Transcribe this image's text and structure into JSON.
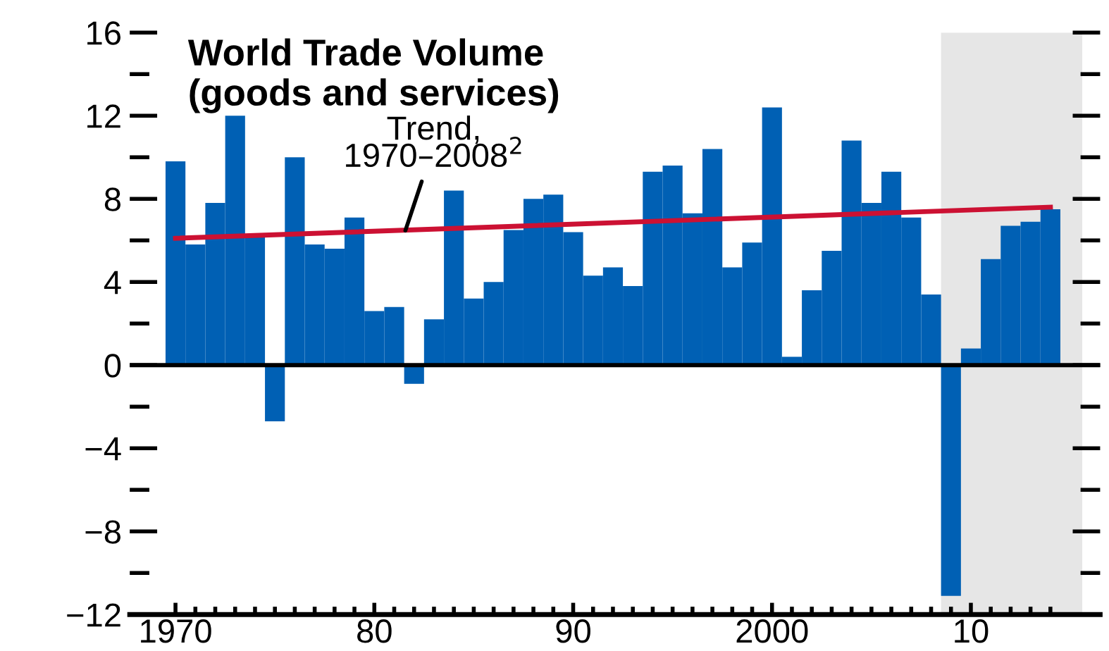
{
  "chart_data": {
    "type": "bar",
    "title": "World Trade Volume\n(goods and services)",
    "x": [
      1970,
      1971,
      1972,
      1973,
      1974,
      1975,
      1976,
      1977,
      1978,
      1979,
      1980,
      1981,
      1982,
      1983,
      1984,
      1985,
      1986,
      1987,
      1988,
      1989,
      1990,
      1991,
      1992,
      1993,
      1994,
      1995,
      1996,
      1997,
      1998,
      1999,
      2000,
      2001,
      2002,
      2003,
      2004,
      2005,
      2006,
      2007,
      2008,
      2009,
      2010,
      2011,
      2012,
      2013,
      2014
    ],
    "series": [
      {
        "color": "#0060b4",
        "values": [
          9.8,
          5.8,
          7.8,
          12.0,
          6.2,
          -2.7,
          10.0,
          5.8,
          5.6,
          7.1,
          2.6,
          2.8,
          -0.9,
          2.2,
          8.4,
          3.2,
          4.0,
          6.5,
          8.0,
          8.2,
          6.4,
          4.3,
          4.7,
          3.8,
          9.3,
          9.6,
          7.3,
          10.4,
          4.7,
          5.9,
          12.4,
          0.4,
          3.6,
          5.5,
          10.8,
          7.8,
          9.3,
          7.1,
          3.4,
          -11.1,
          0.8,
          5.1,
          6.7,
          6.9,
          7.5
        ]
      },
      {
        "type": "line",
        "color": "#cc1133",
        "x": [
          1970,
          2014
        ],
        "values": [
          6.1,
          7.6
        ]
      }
    ],
    "annotations": [
      {
        "text": "Trend,\n1970–2008$^{2}$",
        "x": 1981.5,
        "y": 6.3
      }
    ],
    "ref_lines": [
      {
        "axis": "y",
        "value": 0,
        "color": "#000000"
      }
    ],
    "bands": [
      {
        "axis": "x",
        "from": 2008.5,
        "to": 2015.6,
        "color": "#e6e6e6"
      }
    ],
    "xlim": [
      1967.7,
      2016.5
    ],
    "xticks": [
      {
        "value": 1970,
        "label": "1970"
      },
      {
        "value": 1971,
        "label": null
      },
      {
        "value": 1972,
        "label": null
      },
      {
        "value": 1973,
        "label": null
      },
      {
        "value": 1974,
        "label": null
      },
      {
        "value": 1975,
        "label": null
      },
      {
        "value": 1976,
        "label": null
      },
      {
        "value": 1977,
        "label": null
      },
      {
        "value": 1978,
        "label": null
      },
      {
        "value": 1979,
        "label": null
      },
      {
        "value": 1980,
        "label": "80"
      },
      {
        "value": 1981,
        "label": null
      },
      {
        "value": 1982,
        "label": null
      },
      {
        "value": 1983,
        "label": null
      },
      {
        "value": 1984,
        "label": null
      },
      {
        "value": 1985,
        "label": null
      },
      {
        "value": 1986,
        "label": null
      },
      {
        "value": 1987,
        "label": null
      },
      {
        "value": 1988,
        "label": null
      },
      {
        "value": 1989,
        "label": null
      },
      {
        "value": 1990,
        "label": "90"
      },
      {
        "value": 1991,
        "label": null
      },
      {
        "value": 1992,
        "label": null
      },
      {
        "value": 1993,
        "label": null
      },
      {
        "value": 1994,
        "label": null
      },
      {
        "value": 1995,
        "label": null
      },
      {
        "value": 1996,
        "label": null
      },
      {
        "value": 1997,
        "label": null
      },
      {
        "value": 1998,
        "label": null
      },
      {
        "value": 1999,
        "label": null
      },
      {
        "value": 2000,
        "label": "2000"
      },
      {
        "value": 2001,
        "label": null
      },
      {
        "value": 2002,
        "label": null
      },
      {
        "value": 2003,
        "label": null
      },
      {
        "value": 2004,
        "label": null
      },
      {
        "value": 2005,
        "label": null
      },
      {
        "value": 2006,
        "label": null
      },
      {
        "value": 2007,
        "label": null
      },
      {
        "value": 2008,
        "label": null
      },
      {
        "value": 2009,
        "label": null
      },
      {
        "value": 2010,
        "label": "10"
      },
      {
        "value": 2011,
        "label": null
      },
      {
        "value": 2012,
        "label": null
      },
      {
        "value": 2013,
        "label": null
      },
      {
        "value": 2014,
        "label": null
      }
    ],
    "ylim": [
      -12,
      16
    ],
    "yticks": [
      16,
      {
        "value": 14,
        "label": null
      },
      12,
      {
        "value": 10,
        "label": null
      },
      8,
      {
        "value": 6,
        "label": null
      },
      4,
      {
        "value": 2,
        "label": null
      },
      0,
      {
        "value": -2,
        "label": null
      },
      {
        "value": -4,
        "label": "−4"
      },
      {
        "value": -6,
        "label": null
      },
      {
        "value": -8,
        "label": "−8"
      },
      {
        "value": -10,
        "label": null
      },
      {
        "value": -12,
        "label": "−12"
      }
    ],
    "grid": false,
    "legend": false
  }
}
